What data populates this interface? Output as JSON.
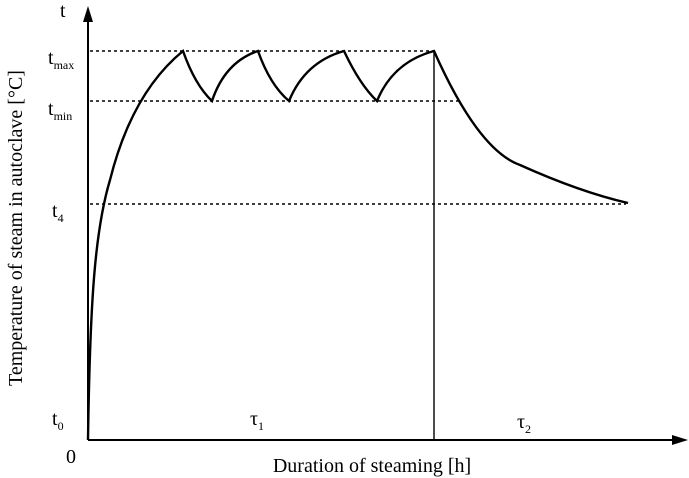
{
  "diagram": {
    "y_axis": {
      "symbol": "t",
      "title": "Temperature of steam in autoclave [°C]"
    },
    "x_axis": {
      "origin": "0",
      "title": "Duration of steaming [h]"
    },
    "levels": [
      {
        "base": "t",
        "sub": "max"
      },
      {
        "base": "t",
        "sub": "min"
      },
      {
        "base": "t",
        "sub": "4"
      },
      {
        "base": "t",
        "sub": "0"
      }
    ],
    "periods": [
      {
        "base": "τ",
        "sub": "1"
      },
      {
        "base": "τ",
        "sub": "2"
      }
    ]
  }
}
